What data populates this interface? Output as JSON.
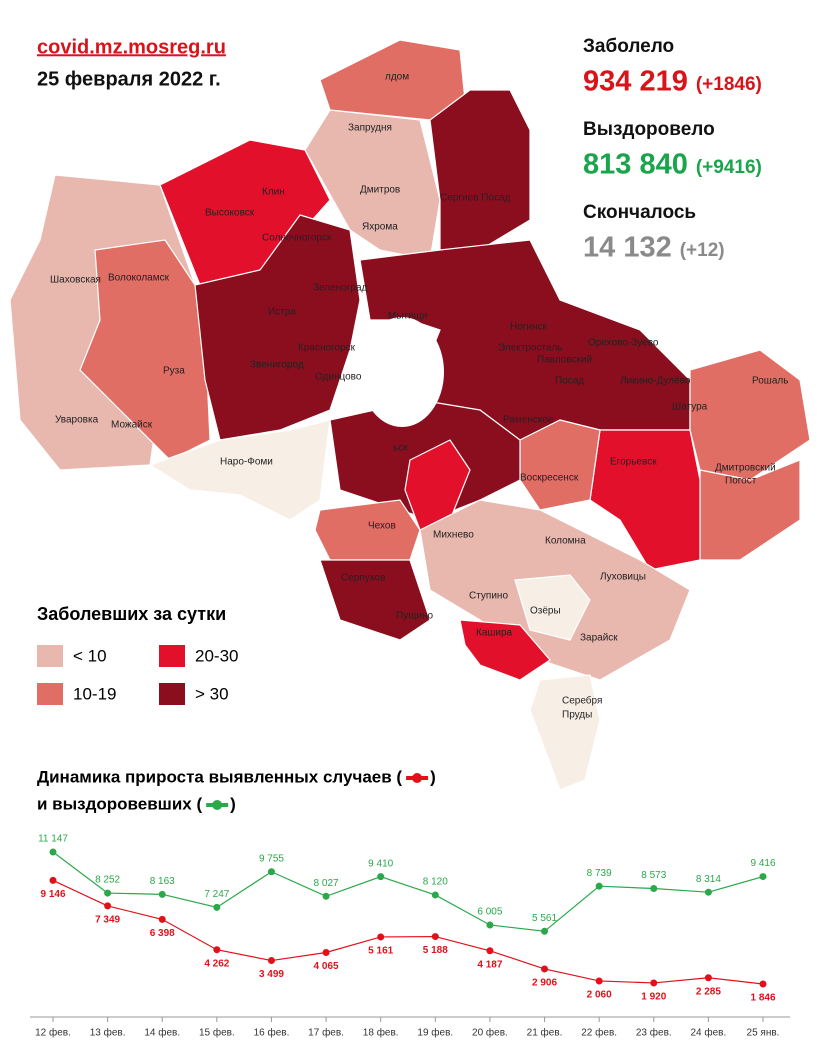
{
  "header": {
    "site": "covid.mz.mosreg.ru",
    "date": "25 февраля 2022 г."
  },
  "stats": [
    {
      "label": "Заболело",
      "value": "934 219",
      "delta": "(+1846)",
      "color": "#d7141a"
    },
    {
      "label": "Выздоровело",
      "value": "813 840",
      "delta": "(+9416)",
      "color": "#1aa44b"
    },
    {
      "label": "Скончалось",
      "value": "14 132",
      "delta": "(+12)",
      "color": "#8a8a8a"
    }
  ],
  "legend": {
    "title": "Заболевших за сутки",
    "items": [
      {
        "label": "< 10",
        "color": "#e8b7ae"
      },
      {
        "label": "10-19",
        "color": "#e06e64"
      },
      {
        "label": "20-30",
        "color": "#e3102b"
      },
      {
        "label": "> 30",
        "color": "#8b0e1f"
      }
    ]
  },
  "map_labels": [
    "лдом",
    "Запрудня",
    "Дмитров",
    "Яхрома",
    "Сергиев Посад",
    "Клин",
    "Высоковск",
    "Солнечногорск",
    "Шаховская",
    "Волоколамск",
    "Зеленоград",
    "Истра",
    "Мытищи",
    "Ногинск",
    "Электросталь",
    "Орехово-Зуево",
    "Красногорск",
    "Звенигород",
    "Одинцово",
    "Павловский",
    "Посад",
    "Ликино-Дулёво",
    "Рошаль",
    "Руза",
    "Шатура",
    "Уваровка",
    "Можайск",
    "Раменское",
    "Наро-Фоми",
    "Егорьевск",
    "Дмитровский",
    "Погост",
    "ьск",
    "Воскресенск",
    "Чехов",
    "Михнево",
    "Коломна",
    "Луховицы",
    "Серпухов",
    "Ступино",
    "Озёры",
    "Пущино",
    "Кашира",
    "Зарайск",
    "Серебря",
    "Пруды"
  ],
  "chart_data": {
    "type": "line",
    "title_lines": [
      "Динамика прироста выявленных случаев (",
      "и выздоровевших ("
    ],
    "title_close": ")",
    "categories": [
      "12 фев.",
      "13 фев.",
      "14 фев.",
      "15 фев.",
      "16 фев.",
      "17 фев.",
      "18 фев.",
      "19 фев.",
      "20 фев.",
      "21 фев.",
      "22 фев.",
      "23 фев.",
      "24 фев.",
      "25 янв."
    ],
    "series": [
      {
        "color": "#2aa84a",
        "values": [
          11147,
          8252,
          8163,
          7247,
          9755,
          8027,
          9410,
          8120,
          6005,
          5561,
          8739,
          8573,
          8314,
          9416
        ],
        "value_labels": [
          "11 147",
          "8 252",
          "8 163",
          "7 247",
          "9 755",
          "8 027",
          "9 410",
          "8 120",
          "6 005",
          "5 561",
          "8 739",
          "8 573",
          "8 314",
          "9 416"
        ]
      },
      {
        "color": "#e3101a",
        "values": [
          9146,
          7349,
          6398,
          4262,
          3499,
          4065,
          5161,
          5188,
          4187,
          2906,
          2060,
          1920,
          2285,
          1846
        ],
        "value_labels": [
          "9 146",
          "7 349",
          "6 398",
          "4 262",
          "3 499",
          "4 065",
          "5 161",
          "5 188",
          "4 187",
          "2 906",
          "2 060",
          "1 920",
          "2 285",
          "1 846"
        ]
      }
    ]
  }
}
